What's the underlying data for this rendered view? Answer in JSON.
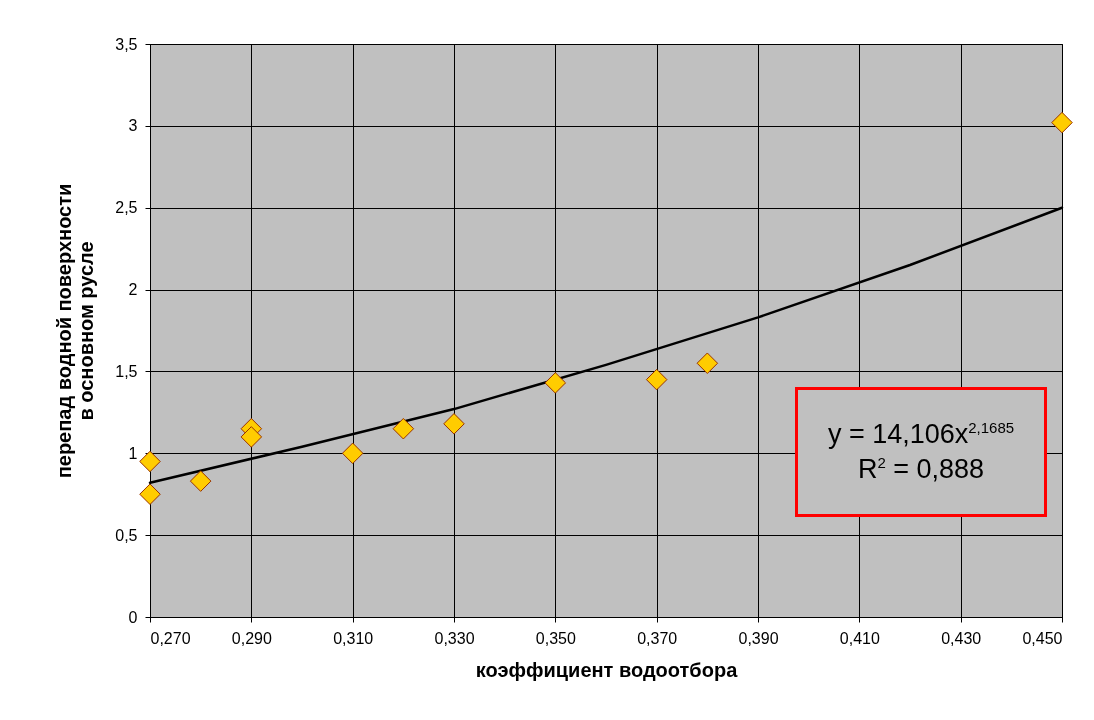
{
  "chart_data": {
    "type": "scatter",
    "xlabel": "коэффициент водоотбора",
    "ylabel": "перепад водной поверхности в основном русле",
    "xlim": [
      0.27,
      0.45
    ],
    "ylim": [
      0,
      3.5
    ],
    "xticks": [
      {
        "value": 0.27,
        "label": "0,270"
      },
      {
        "value": 0.29,
        "label": "0,290"
      },
      {
        "value": 0.31,
        "label": "0,310"
      },
      {
        "value": 0.33,
        "label": "0,330"
      },
      {
        "value": 0.35,
        "label": "0,350"
      },
      {
        "value": 0.37,
        "label": "0,370"
      },
      {
        "value": 0.39,
        "label": "0,390"
      },
      {
        "value": 0.41,
        "label": "0,410"
      },
      {
        "value": 0.43,
        "label": "0,430"
      },
      {
        "value": 0.45,
        "label": "0,450"
      }
    ],
    "yticks": [
      0,
      {
        "value": 0.5,
        "label": "0,5"
      },
      1,
      {
        "value": 1.5,
        "label": "1,5"
      },
      2,
      {
        "value": 2.5,
        "label": "2,5"
      },
      3,
      {
        "value": 3.5,
        "label": "3,5"
      }
    ],
    "grid": true,
    "marker": "diamond",
    "series": [
      {
        "type": "line",
        "marker": "none",
        "color": "#000000",
        "x": [
          0.27,
          0.3,
          0.33,
          0.36,
          0.39,
          0.42,
          0.45
        ],
        "values": [
          0.82,
          1.04,
          1.27,
          1.54,
          1.83,
          2.15,
          2.5
        ]
      },
      {
        "color": "#ffcc00",
        "x": [
          0.27,
          0.27,
          0.28,
          0.29,
          0.29,
          0.31,
          0.32,
          0.33,
          0.35,
          0.37,
          0.38,
          0.45
        ],
        "values": [
          0.95,
          0.75,
          0.83,
          1.15,
          1.1,
          1.0,
          1.15,
          1.18,
          1.43,
          1.45,
          1.55,
          3.02
        ]
      }
    ],
    "annotations": [
      "y = 14,106x$^{2,1685}$",
      "R$^{2}$ = 0,888"
    ]
  }
}
